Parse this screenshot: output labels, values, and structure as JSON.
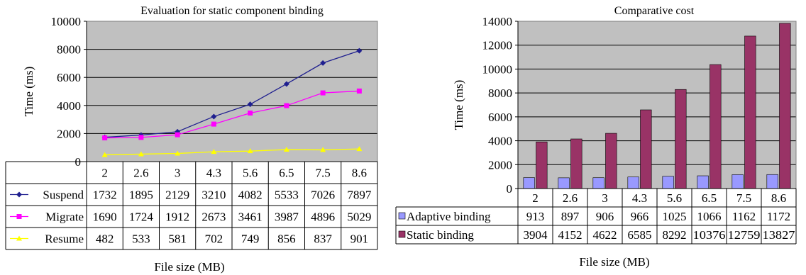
{
  "chart_data": [
    {
      "type": "line",
      "title": "Evaluation for static component binding",
      "xlabel": "File size (MB)",
      "ylabel": "Time  (ms)",
      "categories": [
        "2",
        "2.6",
        "3",
        "4.3",
        "5.6",
        "6.5",
        "7.5",
        "8.6"
      ],
      "ylim": [
        0,
        10000
      ],
      "yticks": [
        "0",
        "2000",
        "4000",
        "6000",
        "8000",
        "10000"
      ],
      "grid": true,
      "legend": "in data table",
      "series": [
        {
          "name": "Suspend",
          "values": [
            1732,
            1895,
            2129,
            3210,
            4082,
            5533,
            7026,
            7897
          ],
          "color": "#1f1f8f",
          "marker": "diamond"
        },
        {
          "name": "Migrate",
          "values": [
            1690,
            1724,
            1912,
            2673,
            3461,
            3987,
            4896,
            5029
          ],
          "color": "#ff00ff",
          "marker": "square"
        },
        {
          "name": "Resume",
          "values": [
            482,
            533,
            581,
            702,
            749,
            856,
            837,
            901
          ],
          "color": "#ffff00",
          "marker": "triangle"
        }
      ]
    },
    {
      "type": "bar",
      "title": "Comparative cost",
      "xlabel": "File size (MB)",
      "ylabel": "Time (ms)",
      "categories": [
        "2",
        "2.6",
        "3",
        "4.3",
        "5.6",
        "6.5",
        "7.5",
        "8.6"
      ],
      "ylim": [
        0,
        14000
      ],
      "yticks": [
        "0",
        "2000",
        "4000",
        "6000",
        "8000",
        "10000",
        "12000",
        "14000"
      ],
      "grid": true,
      "legend": "in data table",
      "series": [
        {
          "name": "Adaptive binding",
          "values": [
            913,
            897,
            906,
            966,
            1025,
            1066,
            1162,
            1172
          ],
          "color": "#9999ff"
        },
        {
          "name": "Static binding",
          "values": [
            3904,
            4152,
            4622,
            6585,
            8292,
            10376,
            12759,
            13827
          ],
          "color": "#993366"
        }
      ]
    }
  ]
}
